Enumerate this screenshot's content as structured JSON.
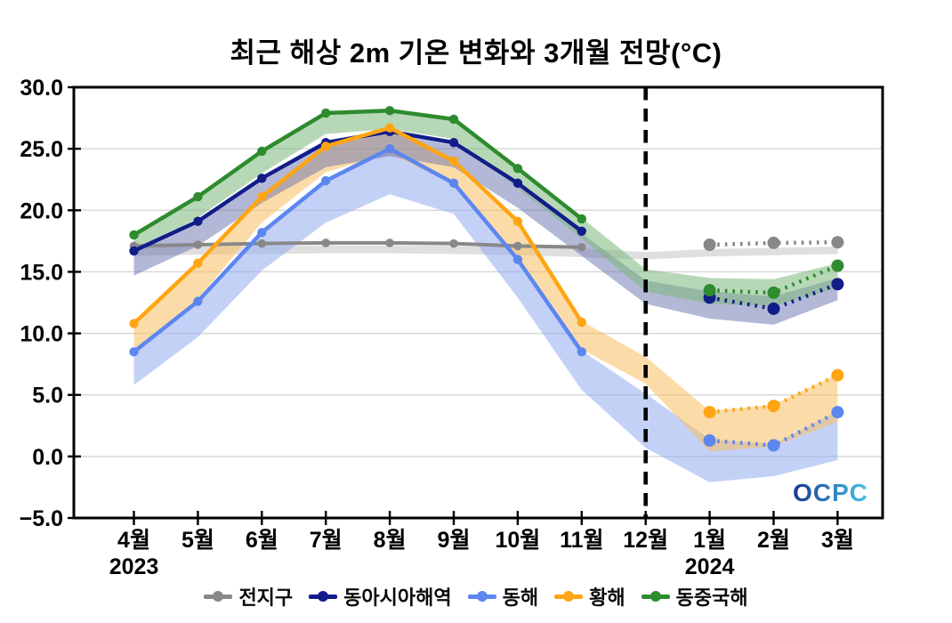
{
  "page": {
    "background": "#ffffff"
  },
  "chart_data": {
    "type": "line",
    "title": "최근 해상 2m 기온 변화와 3개월 전망(°C)",
    "x_categories": [
      "4월",
      "5월",
      "6월",
      "7월",
      "8월",
      "9월",
      "10월",
      "11월",
      "12월",
      "1월",
      "2월",
      "3월"
    ],
    "year_labels": [
      {
        "text": "2023",
        "month_index": 0
      },
      {
        "text": "2024",
        "month_index": 9
      }
    ],
    "ylim": [
      -5.0,
      30.0
    ],
    "y_ticks": [
      {
        "value": 30,
        "label": "30.0"
      },
      {
        "value": 25,
        "label": "25.0"
      },
      {
        "value": 20,
        "label": "20.0"
      },
      {
        "value": 15,
        "label": "15.0"
      },
      {
        "value": 10,
        "label": "10.0"
      },
      {
        "value": 5,
        "label": "5.0"
      },
      {
        "value": 0,
        "label": "0.0"
      },
      {
        "value": -5,
        "label": "−5.0"
      }
    ],
    "grid": "horizontal",
    "legend_position": "bottom",
    "forecast_divider": {
      "month_index": 8,
      "color": "#000000",
      "style": "dashed"
    },
    "observed_month_indexes": [
      0,
      1,
      2,
      3,
      4,
      5,
      6,
      7
    ],
    "forecast_month_indexes": [
      9,
      10,
      11
    ],
    "watermark": {
      "text": "OCPC",
      "color_start": "#16388f",
      "color_end": "#49c6e9"
    },
    "series": [
      {
        "key": "global",
        "name": "전지구",
        "color": "#888888",
        "band_color": "#c0c0c0",
        "band_opacity": 0.5,
        "line_width": 4,
        "observed": [
          17.1,
          17.2,
          17.3,
          17.35,
          17.35,
          17.3,
          17.1,
          17.0
        ],
        "forecast": [
          17.2,
          17.35,
          17.4
        ],
        "band_upper": [
          17.0,
          17.05,
          17.1,
          17.15,
          17.15,
          17.1,
          17.0,
          16.9,
          16.6,
          16.85,
          16.95,
          17.05
        ],
        "band_lower": [
          16.3,
          16.4,
          16.45,
          16.5,
          16.5,
          16.45,
          16.35,
          16.2,
          16.0,
          16.25,
          16.35,
          16.45
        ]
      },
      {
        "key": "east-asia-seas",
        "name": "동아시아해역",
        "color": "#121d8a",
        "band_color": "#6a71b0",
        "band_opacity": 0.5,
        "line_width": 4.5,
        "observed": [
          16.7,
          19.1,
          22.6,
          25.5,
          26.4,
          25.5,
          22.2,
          18.3
        ],
        "forecast": [
          12.9,
          12.0,
          14.0
        ],
        "band_upper": [
          16.5,
          18.9,
          22.4,
          25.3,
          26.2,
          25.3,
          22.0,
          18.1,
          14.3,
          13.4,
          13.0,
          14.5
        ],
        "band_lower": [
          14.7,
          17.1,
          20.6,
          23.5,
          24.4,
          23.5,
          20.2,
          16.3,
          12.4,
          11.2,
          10.7,
          12.7
        ]
      },
      {
        "key": "east-sea",
        "name": "동해",
        "color": "#5c87f0",
        "band_color": "#93acf0",
        "band_opacity": 0.55,
        "line_width": 4.5,
        "observed": [
          8.5,
          12.6,
          18.2,
          22.4,
          25.0,
          22.2,
          16.0,
          8.5
        ],
        "forecast": [
          1.3,
          0.9,
          3.6
        ],
        "band_upper": [
          8.6,
          12.7,
          18.3,
          22.5,
          25.1,
          22.3,
          16.1,
          8.6,
          5.1,
          1.4,
          1.0,
          3.7
        ],
        "band_lower": [
          5.8,
          9.7,
          15.1,
          19.0,
          21.3,
          19.7,
          12.9,
          5.4,
          0.7,
          -2.1,
          -1.6,
          -0.3
        ]
      },
      {
        "key": "yellow-sea",
        "name": "황해",
        "color": "#ffa513",
        "band_color": "#f8bf63",
        "band_opacity": 0.55,
        "line_width": 4.5,
        "observed": [
          10.8,
          15.7,
          21.1,
          25.2,
          26.7,
          24.0,
          19.1,
          10.9
        ],
        "forecast": [
          3.6,
          4.1,
          6.6
        ],
        "band_upper": [
          10.9,
          15.8,
          21.2,
          25.3,
          26.8,
          24.1,
          19.2,
          11.0,
          8.1,
          3.7,
          4.2,
          6.7
        ],
        "band_lower": [
          8.2,
          12.8,
          19.0,
          23.1,
          24.6,
          22.1,
          15.9,
          8.7,
          5.9,
          0.4,
          0.8,
          2.8
        ]
      },
      {
        "key": "east-china-sea",
        "name": "동중국해",
        "color": "#2e8b2e",
        "band_color": "#7cb87c",
        "band_opacity": 0.55,
        "line_width": 4.5,
        "observed": [
          18.0,
          21.1,
          24.8,
          27.9,
          28.1,
          27.4,
          23.4,
          19.3
        ],
        "forecast": [
          13.5,
          13.3,
          15.5
        ],
        "band_upper": [
          18.1,
          21.2,
          24.9,
          28.0,
          28.2,
          27.5,
          23.5,
          19.4,
          15.2,
          14.5,
          14.4,
          15.7
        ],
        "band_lower": [
          16.5,
          19.4,
          23.0,
          26.2,
          26.6,
          25.8,
          21.8,
          17.7,
          13.4,
          12.4,
          12.2,
          13.7
        ]
      }
    ],
    "band_draw_order": [
      "global",
      "east-sea",
      "yellow-sea",
      "east-asia-seas",
      "east-china-sea"
    ]
  }
}
